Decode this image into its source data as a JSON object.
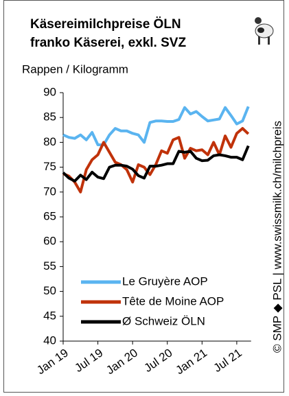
{
  "chart_data": {
    "type": "line",
    "title": "Käsereimilchpreise  ÖLN",
    "subtitle": "franko Käserei, exkl. SVZ",
    "y_label": "Rappen / Kilogramm",
    "source": "© SMP ◆ PSL | www.swissmilk.ch/milchpreis",
    "categories": [
      "Jan 19",
      null,
      null,
      null,
      null,
      null,
      "Jul 19",
      null,
      null,
      null,
      null,
      null,
      "Jan 20",
      null,
      null,
      null,
      null,
      null,
      "Jul 20",
      null,
      null,
      null,
      null,
      null,
      "Jan 21",
      null,
      null,
      null,
      null,
      null,
      "Jul 21",
      null,
      null
    ],
    "series": [
      {
        "name": "Le Gruyère AOP",
        "color": "#5ab4f0",
        "values": [
          81.5,
          81,
          80.8,
          81.5,
          80.5,
          82,
          79.5,
          79.5,
          81.5,
          82.8,
          82.3,
          82.3,
          81.8,
          81.5,
          80,
          84,
          84.3,
          84.3,
          84.2,
          84.2,
          84.6,
          87,
          85.7,
          86.2,
          85.2,
          84.3,
          84.5,
          84.7,
          87,
          85.4,
          83.7,
          84.3,
          87.2
        ]
      },
      {
        "name": "Tête de Moine AOP",
        "color": "#c0320a",
        "values": [
          73.7,
          73.2,
          72,
          70,
          74.5,
          76.5,
          77.5,
          80,
          78,
          76,
          75.5,
          74.5,
          72,
          75.5,
          75,
          73.5,
          75.5,
          78.3,
          77.8,
          80.5,
          81,
          76.8,
          78.8,
          78.3,
          78.5,
          77.5,
          80,
          77.5,
          81.3,
          79,
          81.8,
          82.8,
          81.7
        ]
      },
      {
        "name": "Ø Schweiz ÖLN",
        "color": "#000000",
        "values": [
          73.9,
          72.8,
          72.2,
          73.4,
          72.5,
          74,
          73,
          72.7,
          75,
          75.4,
          75.4,
          75.2,
          74.6,
          73.3,
          72.8,
          75.2,
          75.2,
          75.4,
          75.7,
          75.7,
          78.2,
          78,
          78.2,
          76.8,
          76.3,
          76.4,
          77.3,
          77.5,
          77.3,
          77,
          77,
          76.5,
          79.3
        ]
      }
    ],
    "ylim": [
      40,
      90
    ],
    "yticks": [
      40,
      45,
      50,
      55,
      60,
      65,
      70,
      75,
      80,
      85,
      90
    ],
    "grid": false,
    "legend": "lower-left"
  }
}
